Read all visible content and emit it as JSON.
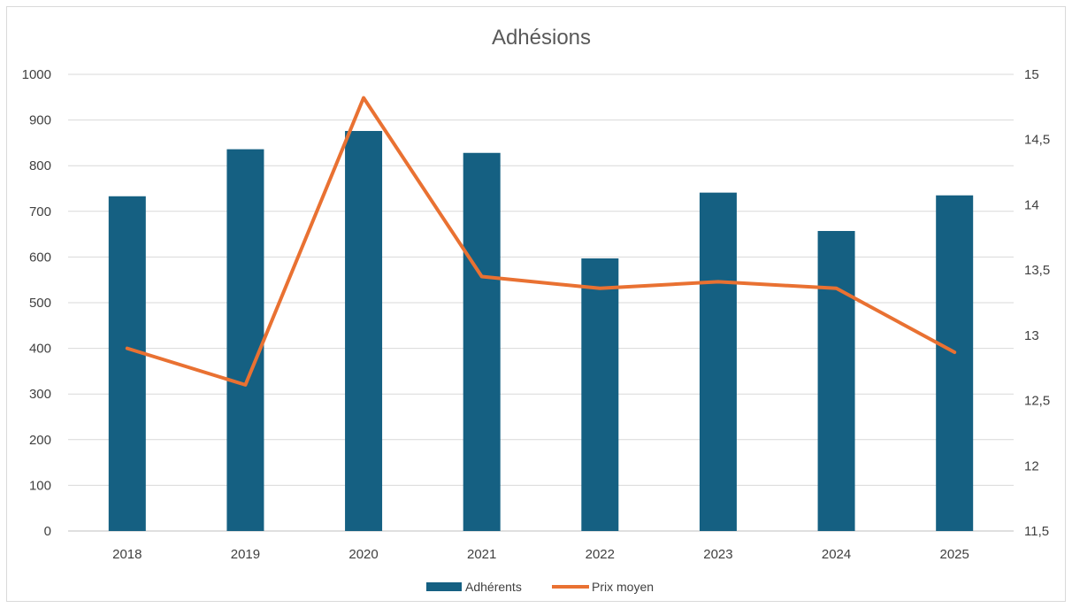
{
  "chart_data": {
    "type": "bar",
    "title": "Adhésions",
    "categories": [
      "2018",
      "2019",
      "2020",
      "2021",
      "2022",
      "2023",
      "2024",
      "2025"
    ],
    "series": [
      {
        "name": "Adhérents",
        "type": "bar",
        "axis": "left",
        "values": [
          733,
          836,
          876,
          828,
          597,
          741,
          657,
          735
        ],
        "color": "#156082"
      },
      {
        "name": "Prix moyen",
        "type": "line",
        "axis": "right",
        "values": [
          12.9,
          12.62,
          14.82,
          13.45,
          13.36,
          13.41,
          13.36,
          12.87
        ],
        "color": "#E97132"
      }
    ],
    "y_left": {
      "min": 0,
      "max": 1000,
      "step": 100,
      "ticks": [
        "0",
        "100",
        "200",
        "300",
        "400",
        "500",
        "600",
        "700",
        "800",
        "900",
        "1000"
      ]
    },
    "y_right": {
      "min": 11.5,
      "max": 15,
      "step": 0.5,
      "ticks": [
        "11,5",
        "12",
        "12,5",
        "13",
        "13,5",
        "14",
        "14,5",
        "15"
      ]
    },
    "grid": true,
    "legend": "bottom",
    "gridColor": "#d9d9d9"
  }
}
